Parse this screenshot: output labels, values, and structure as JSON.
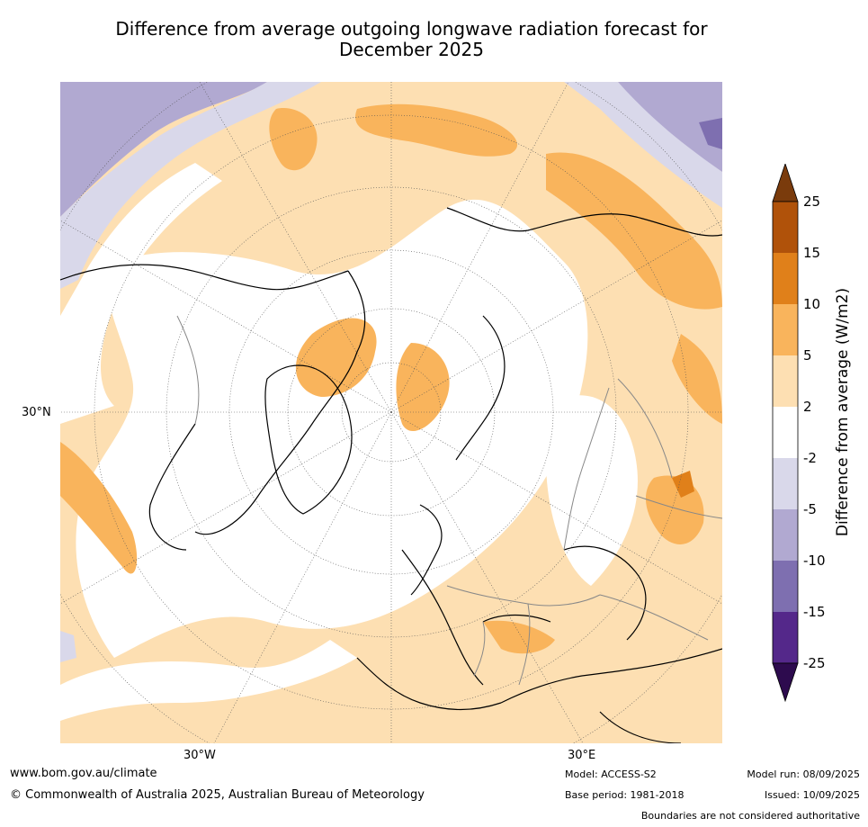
{
  "title": "Difference from average outgoing longwave radiation forecast for",
  "title_line2": "December 2025",
  "map": {
    "lat_label": "30°N",
    "lon_labels": [
      "30°W",
      "30°E"
    ]
  },
  "legend": {
    "title": "Difference from average (W/m2)",
    "ticks": [
      "25",
      "15",
      "10",
      "5",
      "2",
      "-2",
      "-5",
      "-10",
      "-15",
      "-25"
    ],
    "colors": [
      "#7a3b0c",
      "#b0520a",
      "#e0801a",
      "#f9b45c",
      "#fddfb2",
      "#ffffff",
      "#d9d8ea",
      "#b1a9d1",
      "#7e6fb0",
      "#54288a",
      "#2d0b4e"
    ]
  },
  "footer": {
    "website": "www.bom.gov.au/climate",
    "copyright": "© Commonwealth of Australia 2025, Australian Bureau of Meteorology",
    "model": "Model: ACCESS-S2",
    "base_period": "Base period: 1981-2018",
    "model_run": "Model run: 08/09/2025",
    "issued": "Issued: 10/09/2025",
    "disclaimer": "Boundaries are not considered authoritative"
  }
}
